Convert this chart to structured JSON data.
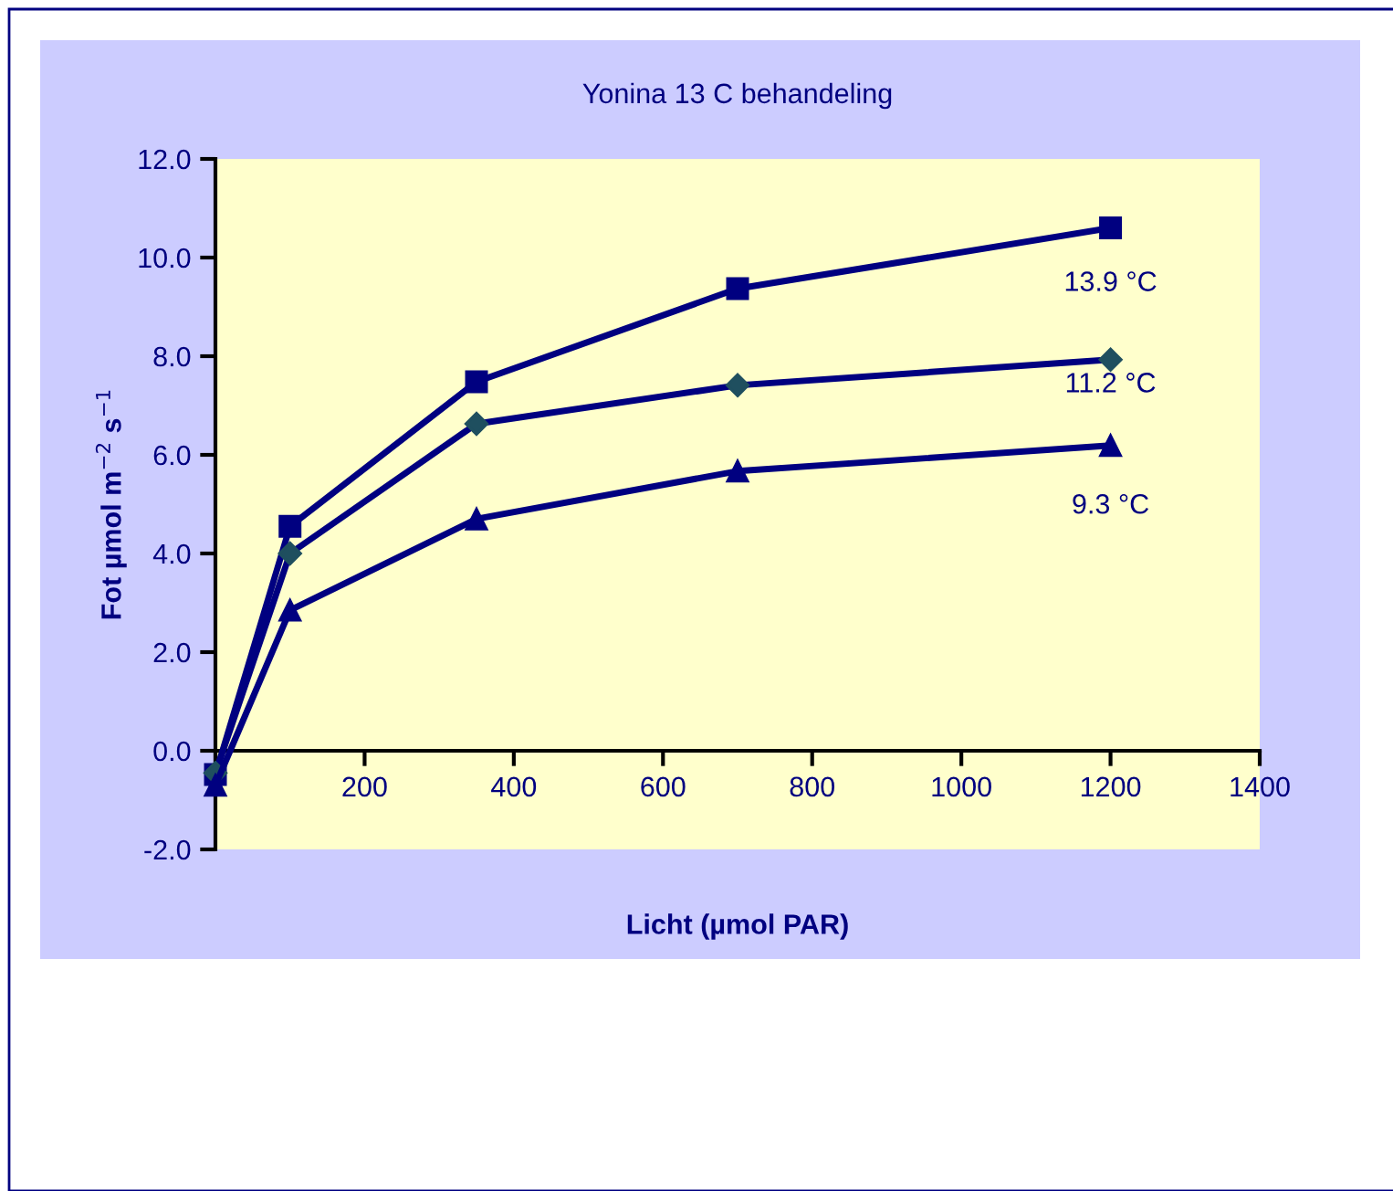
{
  "chart_data": {
    "type": "line",
    "title": "Yonina 13 C behandeling",
    "xlabel": "Licht (µmol PAR)",
    "ylabel": "Fot µmol m$^{−2}$ s$^{−1}$",
    "x": [
      0,
      100,
      350,
      700,
      1200
    ],
    "series": [
      {
        "name": "13.9 °C",
        "color": "#000080",
        "marker": "square",
        "values": [
          -0.48,
          4.55,
          7.48,
          9.37,
          10.6
        ]
      },
      {
        "name": "11.2 °C",
        "color": "#000080",
        "marker": "diamond",
        "values": [
          -0.45,
          4.0,
          6.63,
          7.41,
          7.93
        ]
      },
      {
        "name": "9.3 °C",
        "color": "#000080",
        "marker": "triangle",
        "values": [
          -0.7,
          2.85,
          4.7,
          5.67,
          6.19
        ]
      }
    ],
    "xlim": [
      0,
      1400
    ],
    "xticks": [
      0,
      200,
      400,
      600,
      800,
      1000,
      1200,
      1400
    ],
    "ylim": [
      -2,
      12
    ],
    "yticks": [
      {
        "value": -2,
        "label": "-2.0"
      },
      {
        "value": 0,
        "label": "0.0"
      },
      {
        "value": 2,
        "label": "2.0"
      },
      {
        "value": 4,
        "label": "4.0"
      },
      {
        "value": 6,
        "label": "6.0"
      },
      {
        "value": 8,
        "label": "8.0"
      },
      {
        "value": 10,
        "label": "10.0"
      },
      {
        "value": 12,
        "label": "12.0"
      }
    ],
    "grid": false,
    "legend": false,
    "line_style": "solid"
  }
}
